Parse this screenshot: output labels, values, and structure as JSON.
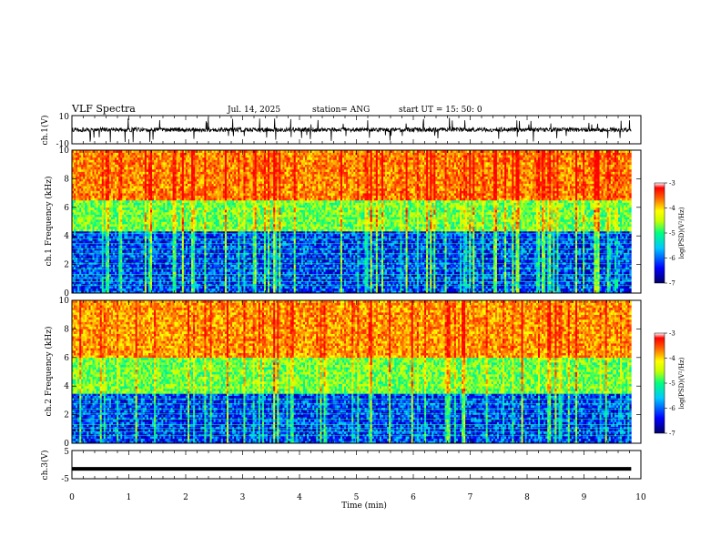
{
  "header": {
    "title": "VLF Spectra",
    "date": "Jul. 14, 2025",
    "station": "station= ANG",
    "start": "start UT = 15: 50: 0"
  },
  "chart_data": [
    {
      "type": "line",
      "name": "ch1_waveform",
      "ylabel": "ch.1(V)",
      "ylim": [
        -10,
        10
      ],
      "yticks": [
        "10",
        "-10"
      ],
      "xlim": [
        0,
        10
      ],
      "baseline": 0,
      "noise_amplitude": 3,
      "spike_amplitude": 9,
      "color": "#000000"
    },
    {
      "type": "heatmap",
      "name": "ch1_spectrogram",
      "ylabel": "ch.1 Frequency (kHz)",
      "ylim": [
        0,
        10
      ],
      "yticks": [
        "0",
        "2",
        "4",
        "6",
        "8",
        "10"
      ],
      "xlim": [
        0,
        9.83
      ],
      "colorbar": {
        "label": "log(PSD)(V²/Hz)",
        "range": [
          -7,
          -3
        ],
        "ticks": [
          "-3",
          "-4",
          "-5",
          "-6",
          "-7"
        ]
      },
      "bands": [
        {
          "from_khz": 0,
          "to_khz": 4.3,
          "level": -6.3
        },
        {
          "from_khz": 4.3,
          "to_khz": 6.5,
          "level": -5.0
        },
        {
          "from_khz": 6.5,
          "to_khz": 10,
          "level": -3.6
        }
      ]
    },
    {
      "type": "heatmap",
      "name": "ch2_spectrogram",
      "ylabel": "ch.2 Frequency (kHz)",
      "ylim": [
        0,
        10
      ],
      "yticks": [
        "0",
        "2",
        "4",
        "6",
        "8",
        "10"
      ],
      "xlim": [
        0,
        9.83
      ],
      "colorbar": {
        "label": "log(PSD)(V²/Hz)",
        "range": [
          -7,
          -3
        ],
        "ticks": [
          "-3",
          "-4",
          "-5",
          "-6",
          "-7"
        ]
      },
      "bands": [
        {
          "from_khz": 0,
          "to_khz": 3.5,
          "level": -6.3
        },
        {
          "from_khz": 3.5,
          "to_khz": 6.0,
          "level": -5.0
        },
        {
          "from_khz": 6.0,
          "to_khz": 10,
          "level": -3.7
        }
      ]
    },
    {
      "type": "line",
      "name": "ch3_waveform",
      "ylabel": "ch.3(V)",
      "ylim": [
        -5,
        5
      ],
      "yticks": [
        "5",
        "-5"
      ],
      "xlim": [
        0,
        9.83
      ],
      "level": -1.5,
      "color": "#000000"
    }
  ],
  "x_axis": {
    "label": "Time (min)",
    "ticks": [
      "0",
      "1",
      "2",
      "3",
      "4",
      "5",
      "6",
      "7",
      "8",
      "9",
      "10"
    ],
    "range": [
      0,
      10
    ]
  },
  "colormap": [
    "#000066",
    "#0000ff",
    "#00c8ff",
    "#00ff80",
    "#c8ff00",
    "#ffff00",
    "#ff8000",
    "#ff0000",
    "#ffffff"
  ]
}
